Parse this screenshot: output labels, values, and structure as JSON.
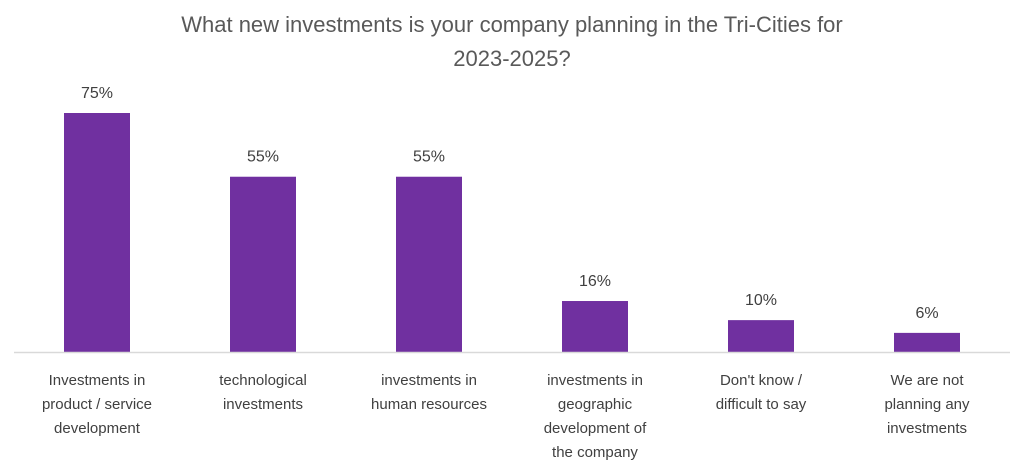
{
  "chart_data": {
    "type": "bar",
    "title": "What new investments is your company planning in the Tri-Cities for 2023-2025?",
    "title_lines": [
      "What new investments is your company planning in the Tri-Cities for",
      "2023-2025?"
    ],
    "categories": [
      "Investments in product / service development",
      "technological investments",
      "investments in human resources",
      "investments in geographic development of the company",
      "Don't know / difficult to say",
      "We are not planning any investments"
    ],
    "category_lines": [
      [
        "Investments in",
        "product / service",
        "development"
      ],
      [
        "technological",
        "investments"
      ],
      [
        "investments in",
        "human resources"
      ],
      [
        "investments in",
        "geographic",
        "development of",
        "the company"
      ],
      [
        "Don't know /",
        "difficult to say"
      ],
      [
        "We are not",
        "planning any",
        "investments"
      ]
    ],
    "values": [
      75,
      55,
      55,
      16,
      10,
      6
    ],
    "value_labels": [
      "75%",
      "55%",
      "55%",
      "16%",
      "10%",
      "6%"
    ],
    "unit": "%",
    "ylim": [
      0,
      75
    ],
    "xlabel": "",
    "ylabel": "",
    "grid": false,
    "legend": "none",
    "bar_color": "#7030A0",
    "axis_color": "#D9D9D9"
  }
}
